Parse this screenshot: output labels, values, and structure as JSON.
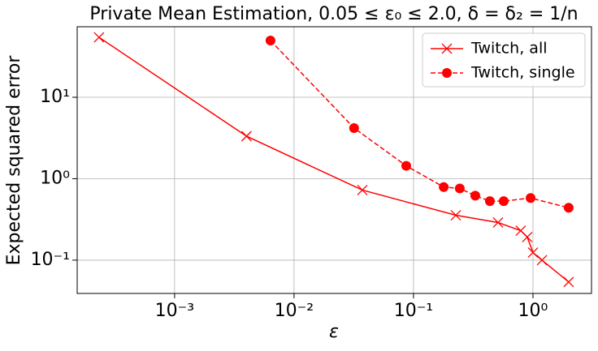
{
  "chart_data": {
    "type": "line",
    "title": "Private Mean Estimation, 0.05 ≤ ε₀ ≤ 2.0, δ = δ₂ = 1/n",
    "xlabel": "ε",
    "ylabel": "Expected squared error",
    "xscale": "log",
    "yscale": "log",
    "grid": true,
    "legend": "upper right",
    "xlim": [
      0.000153,
      3.09
    ],
    "ylim": [
      0.039,
      73.5
    ],
    "xticks": [
      {
        "value": 0.001,
        "label": "10⁻³"
      },
      {
        "value": 0.01,
        "label": "10⁻²"
      },
      {
        "value": 0.1,
        "label": "10⁻¹"
      },
      {
        "value": 1,
        "label": "10⁰"
      }
    ],
    "yticks": [
      {
        "value": 0.1,
        "label": "10⁻¹"
      },
      {
        "value": 1,
        "label": "10⁰"
      },
      {
        "value": 10,
        "label": "10¹"
      }
    ],
    "series": [
      {
        "name": "Twitch, all",
        "color": "#ff0000",
        "marker": "x",
        "linestyle": "solid",
        "x": [
          0.000233,
          0.004,
          0.0373,
          0.226,
          0.51,
          0.79,
          0.896,
          1.0,
          1.19,
          1.99
        ],
        "values": [
          54.5,
          3.33,
          0.726,
          0.356,
          0.29,
          0.23,
          0.192,
          0.124,
          0.1,
          0.054
        ]
      },
      {
        "name": "Twitch, single",
        "color": "#ff0000",
        "marker": "o",
        "linestyle": "dashed",
        "x": [
          0.00635,
          0.0318,
          0.0869,
          0.179,
          0.244,
          0.329,
          0.436,
          0.569,
          0.955,
          1.99
        ],
        "values": [
          49.8,
          4.19,
          1.44,
          0.79,
          0.76,
          0.62,
          0.53,
          0.53,
          0.58,
          0.44
        ]
      }
    ]
  }
}
